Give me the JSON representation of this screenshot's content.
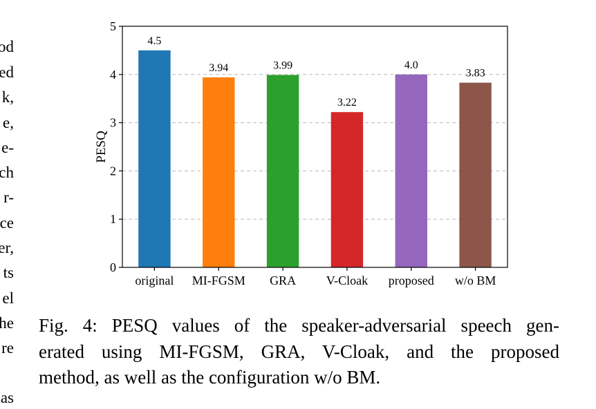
{
  "left_text_fragments": [
    "od",
    "ed",
    "k,",
    "e,",
    "e-",
    "ch",
    "r-",
    "ce",
    "er,",
    "ts",
    "el",
    "he",
    "re",
    "",
    "as"
  ],
  "caption": {
    "lines": [
      "Fig. 4: PESQ values of the speaker-adversarial speech gen-",
      "erated using MI-FGSM, GRA, V-Cloak, and the proposed",
      "method, as well as the configuration w/o BM."
    ]
  },
  "chart_data": {
    "type": "bar",
    "categories": [
      "original",
      "MI-FGSM",
      "GRA",
      "V-Cloak",
      "proposed",
      "w/o BM"
    ],
    "values": [
      4.5,
      3.94,
      3.99,
      3.22,
      4.0,
      3.83
    ],
    "value_labels": [
      "4.5",
      "3.94",
      "3.99",
      "3.22",
      "4.0",
      "3.83"
    ],
    "colors": [
      "#1f77b4",
      "#ff7f0e",
      "#2ca02c",
      "#d62728",
      "#9467bd",
      "#8c564b"
    ],
    "title": "",
    "xlabel": "",
    "ylabel": "PESQ",
    "ylim": [
      0,
      5
    ],
    "yticks": [
      0,
      1,
      2,
      3,
      4,
      5
    ],
    "grid": "y dashed",
    "legend": "none"
  }
}
